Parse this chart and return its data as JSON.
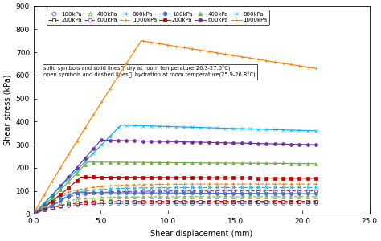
{
  "xlabel": "Shear displacement (mm)",
  "ylabel": "Shear stress (kPa)",
  "xlim": [
    0,
    25
  ],
  "ylim": [
    0,
    900
  ],
  "xticks": [
    0.0,
    5.0,
    10.0,
    15.0,
    20.0,
    25.0
  ],
  "yticks": [
    0,
    100,
    200,
    300,
    400,
    500,
    600,
    700,
    800,
    900
  ],
  "pressures": [
    100,
    200,
    400,
    600,
    800,
    1000
  ],
  "colors": [
    "#4472C4",
    "#C00000",
    "#70AD47",
    "#7030A0",
    "#00B0F0",
    "#FF8000"
  ],
  "pressure_labels": [
    "100kPa",
    "200kPa",
    "400kPa",
    "600kPa",
    "800kPa",
    "1000kPa"
  ],
  "annotation1": "solid symbols and solid lines：  dry at room temperature(26.3-27.6°C)",
  "annotation2": "open symbols and dashed lines：  hydration at room temperature(25.9-26.8°C)",
  "dry_plateaus": [
    93,
    160,
    225,
    320,
    385,
    750
  ],
  "dry_peak_x": [
    3.0,
    3.5,
    4.0,
    5.0,
    6.5,
    8.0
  ],
  "dry_end": [
    88,
    155,
    218,
    300,
    360,
    630
  ],
  "wet_plateaus": [
    47,
    55,
    75,
    100,
    115,
    130
  ],
  "wet_peak_x": [
    5.0,
    5.5,
    5.5,
    6.0,
    6.5,
    7.0
  ]
}
